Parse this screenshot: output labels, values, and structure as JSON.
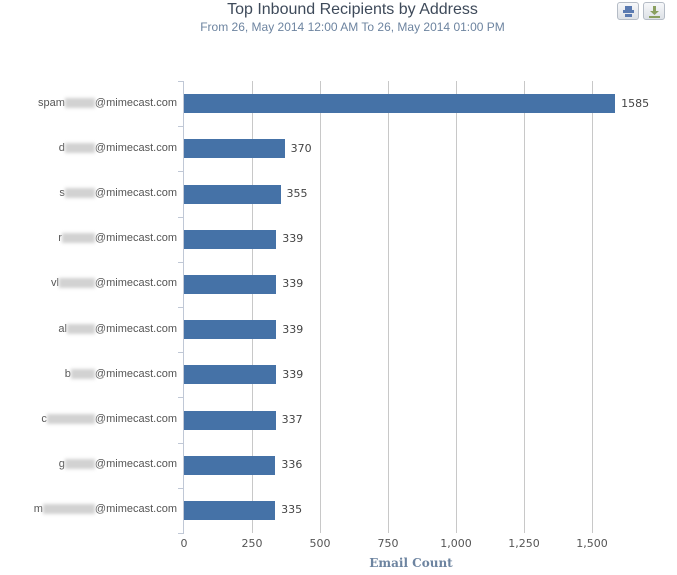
{
  "header": {
    "title": "Top Inbound Recipients by Address",
    "subtitle": "From 26, May 2014 12:00 AM To 26, May 2014 01:00 PM",
    "buttons": [
      {
        "name": "print-button",
        "icon": "printer-icon"
      },
      {
        "name": "download-button",
        "icon": "download-icon"
      }
    ]
  },
  "colors": {
    "bar": "#4572a7",
    "title": "#3e4a5a",
    "subtitle": "#6d84a0",
    "axis_title": "#6d84a0"
  },
  "chart_data": {
    "type": "bar",
    "orientation": "horizontal",
    "title": "Top Inbound Recipients by Address",
    "subtitle": "From 26, May 2014 12:00 AM To 26, May 2014 01:00 PM",
    "categories": [
      "spam*****@mimecast.com",
      "d*****@mimecast.com",
      "s*****@mimecast.com",
      "r*****@mimecast.com",
      "vl*****@mimecast.com",
      "al*****@mimecast.com",
      "b*****@mimecast.com",
      "c*****@mimecast.com",
      "g*****@mimecast.com",
      "m*****@mimecast.com"
    ],
    "values": [
      1585,
      370,
      355,
      339,
      339,
      339,
      339,
      337,
      336,
      335
    ],
    "xlabel": "Email Count",
    "ylabel": "",
    "xlim": [
      0,
      1750
    ],
    "xticks": [
      "0",
      "250",
      "500",
      "750",
      "1,000",
      "1,250",
      "1,500"
    ],
    "grid": true,
    "legend": false,
    "data_labels": true
  },
  "labels": [
    {
      "prefix": "spam",
      "blur_w": 30,
      "suffix": "@mimecast.com"
    },
    {
      "prefix": "d",
      "blur_w": 30,
      "suffix": "@mimecast.com"
    },
    {
      "prefix": "s",
      "blur_w": 30,
      "suffix": "@mimecast.com"
    },
    {
      "prefix": "r",
      "blur_w": 33,
      "suffix": "@mimecast.com"
    },
    {
      "prefix": "vl",
      "blur_w": 36,
      "suffix": "@mimecast.com"
    },
    {
      "prefix": "al",
      "blur_w": 28,
      "suffix": "@mimecast.com"
    },
    {
      "prefix": "b",
      "blur_w": 24,
      "suffix": "@mimecast.com"
    },
    {
      "prefix": "c",
      "blur_w": 48,
      "suffix": "@mimecast.com"
    },
    {
      "prefix": "g",
      "blur_w": 30,
      "suffix": "@mimecast.com"
    },
    {
      "prefix": "m",
      "blur_w": 52,
      "suffix": "@mimecast.com"
    }
  ],
  "value_labels": [
    "1585",
    "370",
    "355",
    "339",
    "339",
    "339",
    "339",
    "337",
    "336",
    "335"
  ]
}
